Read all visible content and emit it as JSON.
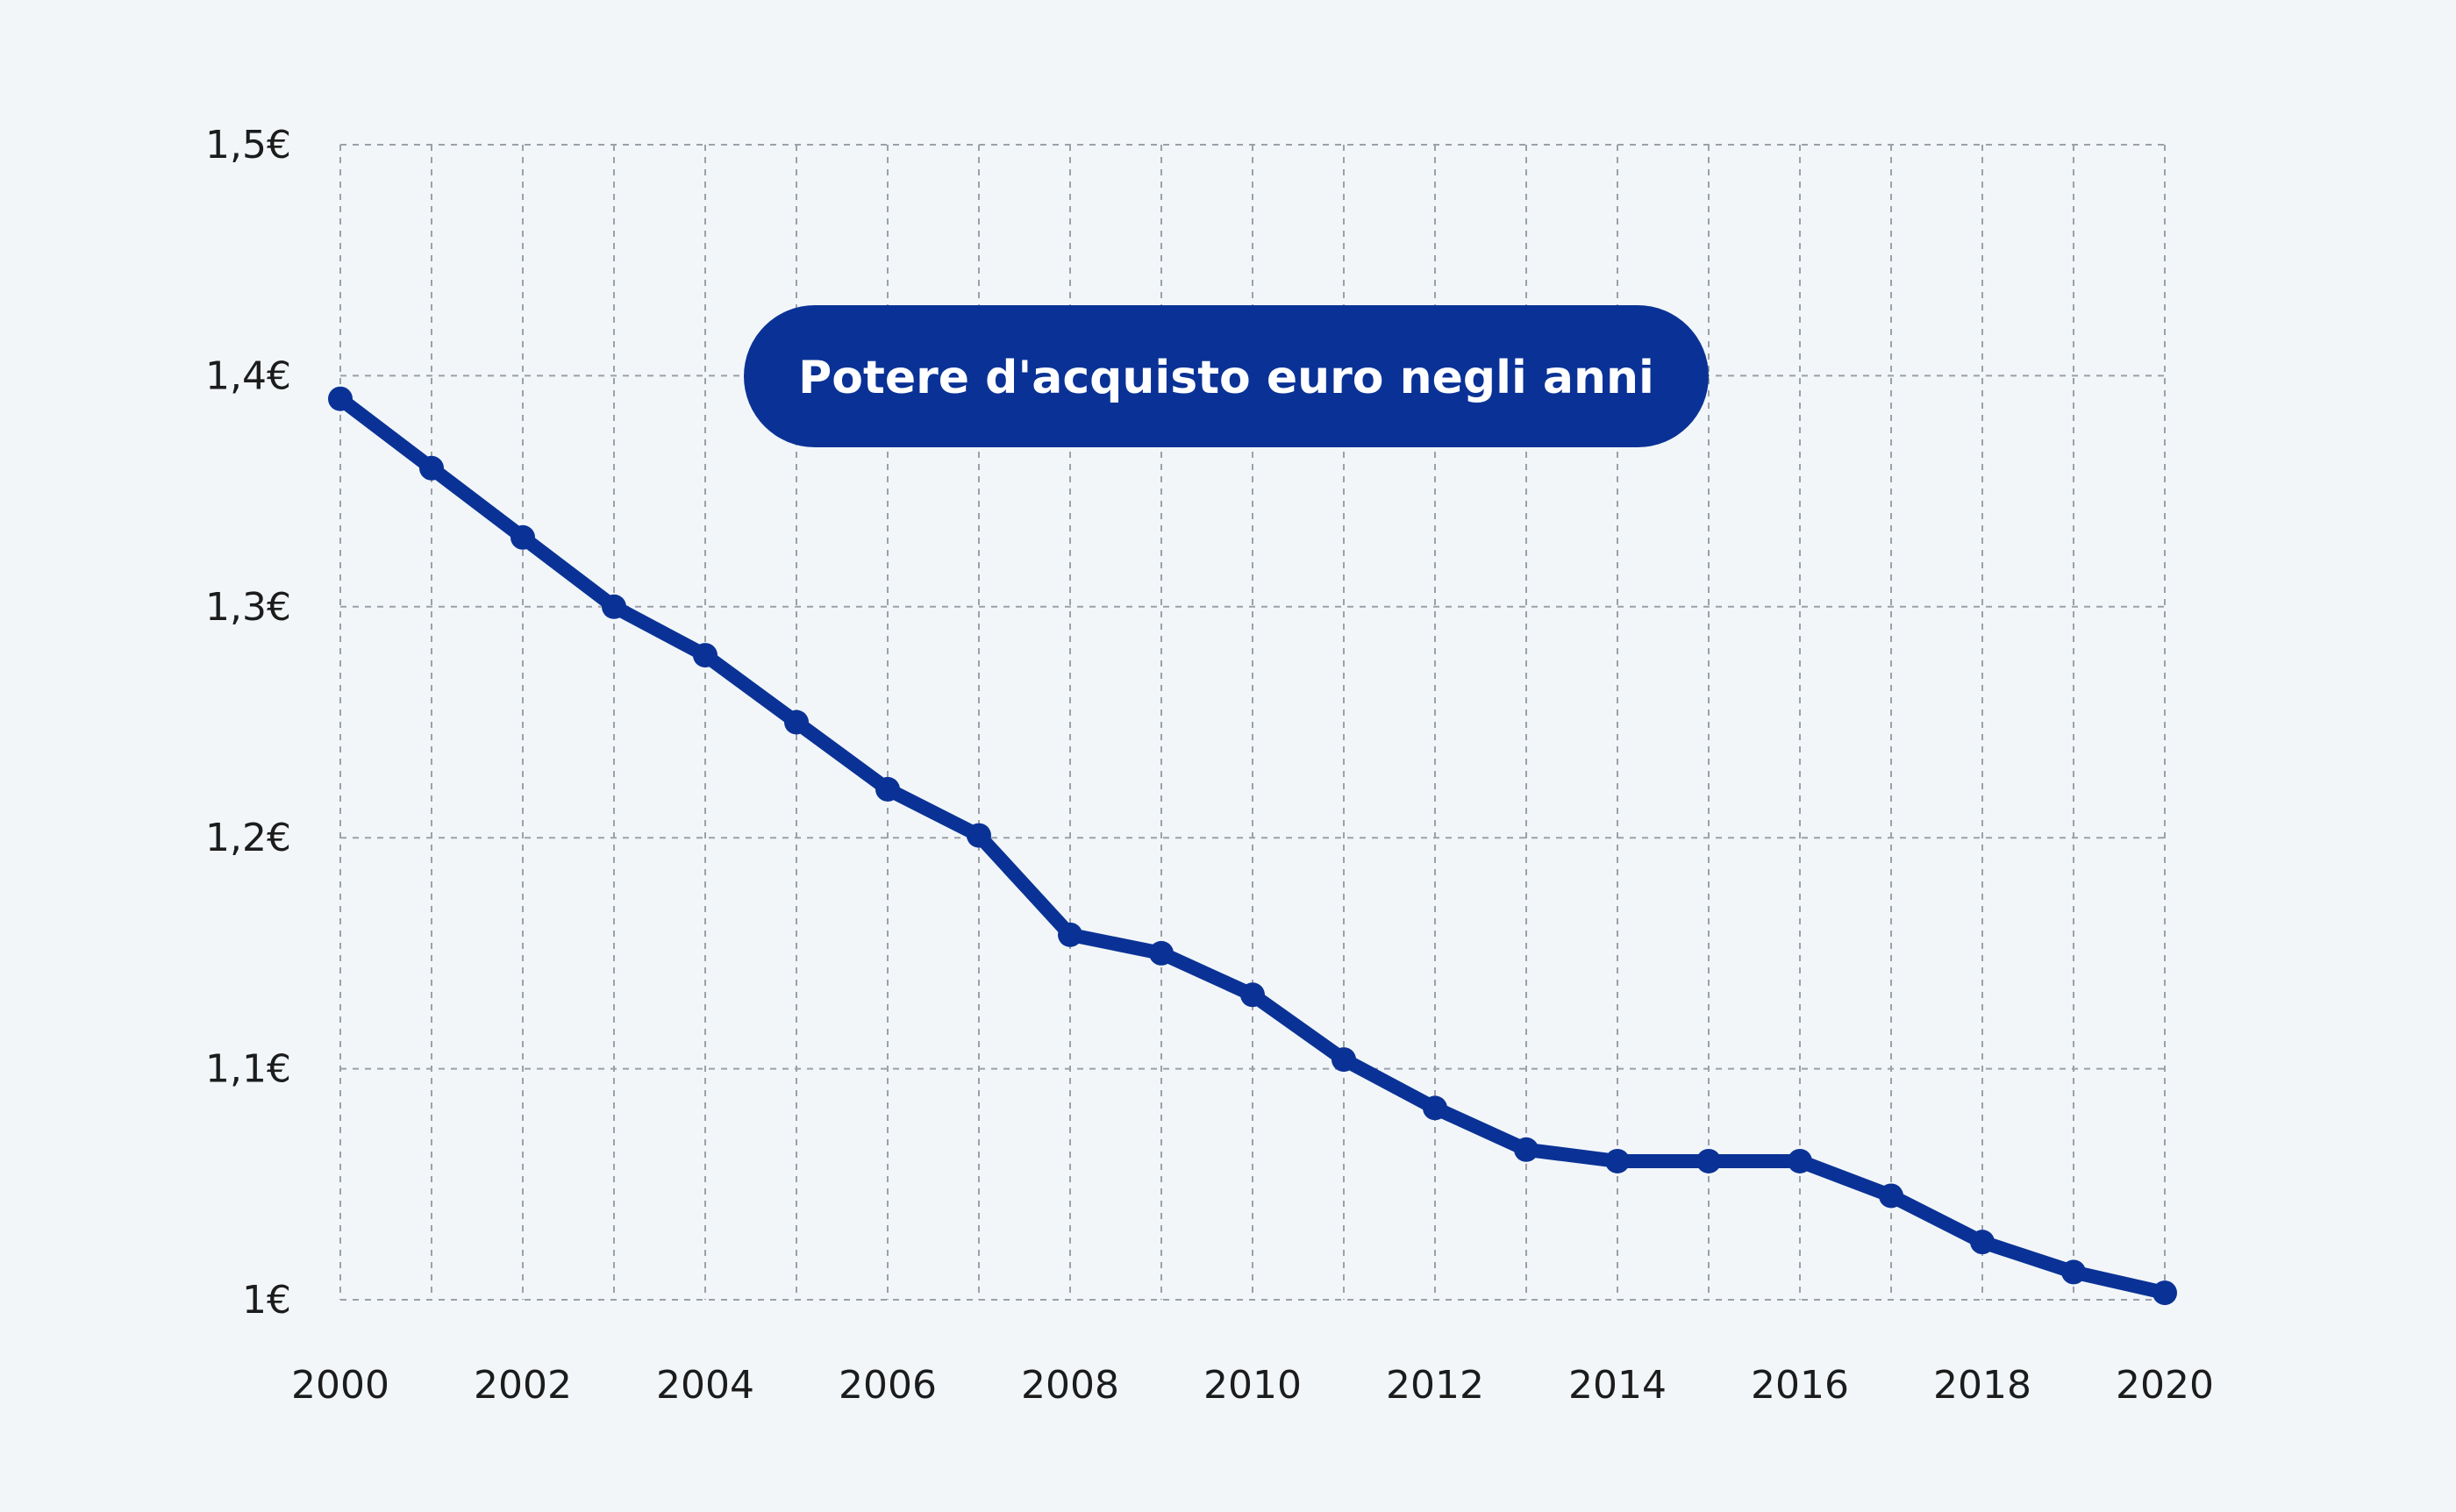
{
  "chart_data": {
    "type": "line",
    "title": "Potere d'acquisto euro negli anni",
    "xlabel": "",
    "ylabel": "",
    "x": [
      2000,
      2001,
      2002,
      2003,
      2004,
      2005,
      2006,
      2007,
      2008,
      2009,
      2010,
      2011,
      2012,
      2013,
      2014,
      2015,
      2016,
      2017,
      2018,
      2019,
      2020
    ],
    "series": [
      {
        "name": "Potere d'acquisto",
        "values": [
          1.39,
          1.36,
          1.33,
          1.3,
          1.279,
          1.25,
          1.221,
          1.201,
          1.158,
          1.15,
          1.132,
          1.104,
          1.083,
          1.065,
          1.06,
          1.06,
          1.06,
          1.045,
          1.025,
          1.012,
          1.003
        ]
      }
    ],
    "xlim": [
      2000,
      2020
    ],
    "ylim": [
      1.0,
      1.5
    ],
    "x_tick_labels": [
      "2000",
      "2002",
      "2004",
      "2006",
      "2008",
      "2010",
      "2012",
      "2014",
      "2016",
      "2018",
      "2020"
    ],
    "y_tick_labels": [
      "1€",
      "1,1€",
      "1,2€",
      "1,3€",
      "1,4€",
      "1,5€"
    ],
    "y_tick_values": [
      1.0,
      1.1,
      1.2,
      1.3,
      1.4,
      1.5
    ],
    "grid": true,
    "colors": {
      "series": "#0a3296",
      "title_background": "#0a3296",
      "title_text": "#ffffff",
      "grid": "#9aa1a8",
      "background": "#f2f6f9"
    }
  }
}
